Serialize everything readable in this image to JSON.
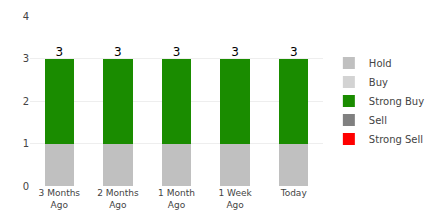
{
  "chart_data": {
    "type": "bar",
    "stacked": true,
    "categories": [
      "3 Months\nAgo",
      "2 Months\nAgo",
      "1 Month\nAgo",
      "1 Week\nAgo",
      "Today"
    ],
    "series": [
      {
        "name": "Hold",
        "color": "#c0c0c0",
        "values": [
          1,
          1,
          1,
          1,
          1
        ]
      },
      {
        "name": "Buy",
        "color": "#d3d3d3",
        "values": [
          0,
          0,
          0,
          0,
          0
        ]
      },
      {
        "name": "Strong Buy",
        "color": "#1a8c00",
        "values": [
          2,
          2,
          2,
          2,
          2
        ]
      },
      {
        "name": "Sell",
        "color": "#808080",
        "values": [
          0,
          0,
          0,
          0,
          0
        ]
      },
      {
        "name": "Strong Sell",
        "color": "#ff0000",
        "values": [
          0,
          0,
          0,
          0,
          0
        ]
      }
    ],
    "totals": [
      3,
      3,
      3,
      3,
      3
    ],
    "ylim": [
      0,
      4
    ],
    "yticks": [
      0,
      1,
      2,
      3,
      4
    ],
    "grid": true,
    "legend": "right"
  }
}
